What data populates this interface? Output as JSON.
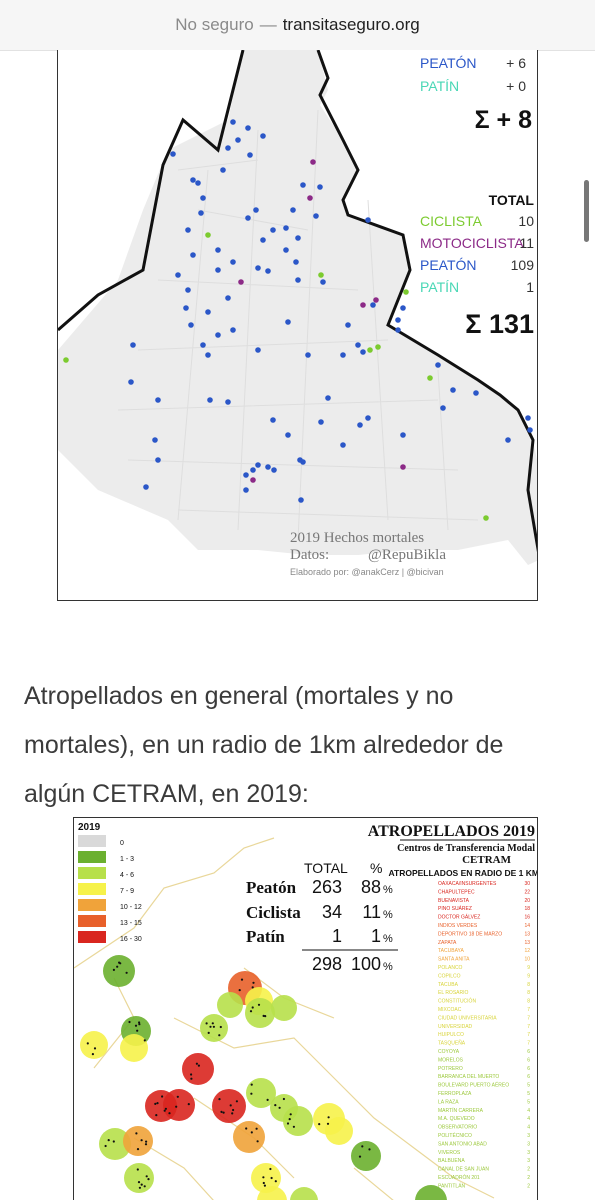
{
  "browser": {
    "security_label": "No seguro",
    "separator": "—",
    "domain": "transitaseguro.org"
  },
  "map1": {
    "partial_legend": [
      {
        "label": "PEATÓN",
        "value": "+ 6",
        "color": "#2b57c8"
      },
      {
        "label": "PATÍN",
        "value": "+ 0",
        "color": "#49d7b5"
      }
    ],
    "partial_sum_label": "Σ + 8",
    "total_header": "TOTAL",
    "total_legend": [
      {
        "label": "CICLISTA",
        "value": "10",
        "color": "#7ccb2f"
      },
      {
        "label": "MOTOCICLISTA",
        "value": "11",
        "color": "#8c2a87"
      },
      {
        "label": "PEATÓN",
        "value": "109",
        "color": "#2b57c8"
      },
      {
        "label": "PATÍN",
        "value": "1",
        "color": "#49d7b5"
      }
    ],
    "total_sum_label": "Σ 131",
    "title": "2019 Hechos mortales",
    "source_label": "Datos:",
    "source_handle": "@RepuBikla",
    "credits": "Elaborado por: @anakCerz  |  @bicivan"
  },
  "article": {
    "caption": "Atropellados en general (mortales y no mortales), en un radio de 1km alrededor de algún CETRAM, en 2019:"
  },
  "map2": {
    "legend_year": "2019",
    "legend": [
      {
        "label": "0",
        "color": "#d9d9d9"
      },
      {
        "label": "1 - 3",
        "color": "#6bb02f"
      },
      {
        "label": "4 - 6",
        "color": "#b7e04a"
      },
      {
        "label": "7 - 9",
        "color": "#f6f24a"
      },
      {
        "label": "10 - 12",
        "color": "#f0a33a"
      },
      {
        "label": "13 - 15",
        "color": "#e8602a"
      },
      {
        "label": "16 - 30",
        "color": "#d9261f"
      }
    ],
    "table_headers": [
      "TOTAL",
      "%"
    ],
    "table_rows": [
      {
        "label": "Peatón",
        "total": "263",
        "pct": "88",
        "pct_suffix": "%"
      },
      {
        "label": "Ciclista",
        "total": "34",
        "pct": "11",
        "pct_suffix": "%"
      },
      {
        "label": "Patín",
        "total": "1",
        "pct": "1",
        "pct_suffix": "%"
      }
    ],
    "table_total": {
      "total": "298",
      "pct": "100",
      "pct_suffix": "%"
    },
    "title": "ATROPELLADOS 2019",
    "subtitle": "Centros de Transferencia Modal",
    "cetram": "CETRAM",
    "radius_label": "ATROPELLADOS EN RADIO DE 1 KM",
    "stations": [
      {
        "name": "OAXACA/INSURGENTES",
        "value": "30",
        "color": "#d9261f"
      },
      {
        "name": "CHAPULTEPEC",
        "value": "22",
        "color": "#d9261f"
      },
      {
        "name": "BUENAVISTA",
        "value": "20",
        "color": "#d9261f"
      },
      {
        "name": "PINO SUÁREZ",
        "value": "18",
        "color": "#d9261f"
      },
      {
        "name": "DOCTOR GÁLVEZ",
        "value": "16",
        "color": "#d9261f"
      },
      {
        "name": "INDIOS VERDES",
        "value": "14",
        "color": "#e8602a"
      },
      {
        "name": "DEPORTIVO 18 DE MARZO",
        "value": "13",
        "color": "#e8602a"
      },
      {
        "name": "ZAPATA",
        "value": "13",
        "color": "#e8602a"
      },
      {
        "name": "TACUBAYA",
        "value": "12",
        "color": "#f0a33a"
      },
      {
        "name": "SANTA ANITA",
        "value": "10",
        "color": "#f0a33a"
      },
      {
        "name": "POLANCO",
        "value": "9",
        "color": "#d8d43a"
      },
      {
        "name": "COPILCO",
        "value": "9",
        "color": "#d8d43a"
      },
      {
        "name": "TACUBA",
        "value": "8",
        "color": "#d8d43a"
      },
      {
        "name": "EL ROSARIO",
        "value": "8",
        "color": "#d8d43a"
      },
      {
        "name": "CONSTITUCIÓN",
        "value": "8",
        "color": "#d8d43a"
      },
      {
        "name": "MIXCOAC",
        "value": "7",
        "color": "#d8d43a"
      },
      {
        "name": "CIUDAD UNIVERSITARIA",
        "value": "7",
        "color": "#d8d43a"
      },
      {
        "name": "UNIVERSIDAD",
        "value": "7",
        "color": "#d8d43a"
      },
      {
        "name": "HUIPULCO",
        "value": "7",
        "color": "#d8d43a"
      },
      {
        "name": "TASQUEÑA",
        "value": "7",
        "color": "#d8d43a"
      },
      {
        "name": "COYOYA",
        "value": "6",
        "color": "#9bc83a"
      },
      {
        "name": "MORELOS",
        "value": "6",
        "color": "#9bc83a"
      },
      {
        "name": "POTRERO",
        "value": "6",
        "color": "#9bc83a"
      },
      {
        "name": "BARRANCA DEL MUERTO",
        "value": "6",
        "color": "#9bc83a"
      },
      {
        "name": "BOULEVARD PUERTO AÉREO",
        "value": "5",
        "color": "#9bc83a"
      },
      {
        "name": "FERROPLAZA",
        "value": "5",
        "color": "#9bc83a"
      },
      {
        "name": "LA RAZA",
        "value": "5",
        "color": "#9bc83a"
      },
      {
        "name": "MARTÍN CARRERA",
        "value": "4",
        "color": "#9bc83a"
      },
      {
        "name": "M.A. QUEVEDO",
        "value": "4",
        "color": "#9bc83a"
      },
      {
        "name": "OBSERVATORIO",
        "value": "4",
        "color": "#9bc83a"
      },
      {
        "name": "POLITÉCNICO",
        "value": "3",
        "color": "#9bc83a"
      },
      {
        "name": "SAN ANTONIO ABAD",
        "value": "3",
        "color": "#9bc83a"
      },
      {
        "name": "VIVEROS",
        "value": "3",
        "color": "#9bc83a"
      },
      {
        "name": "BALBUENA",
        "value": "3",
        "color": "#9bc83a"
      },
      {
        "name": "CANAL DE SAN JUAN",
        "value": "2",
        "color": "#9bc83a"
      },
      {
        "name": "ESCUADRÓN 201",
        "value": "2",
        "color": "#9bc83a"
      },
      {
        "name": "PANTITLÁN",
        "value": "2",
        "color": "#9bc83a"
      }
    ]
  }
}
